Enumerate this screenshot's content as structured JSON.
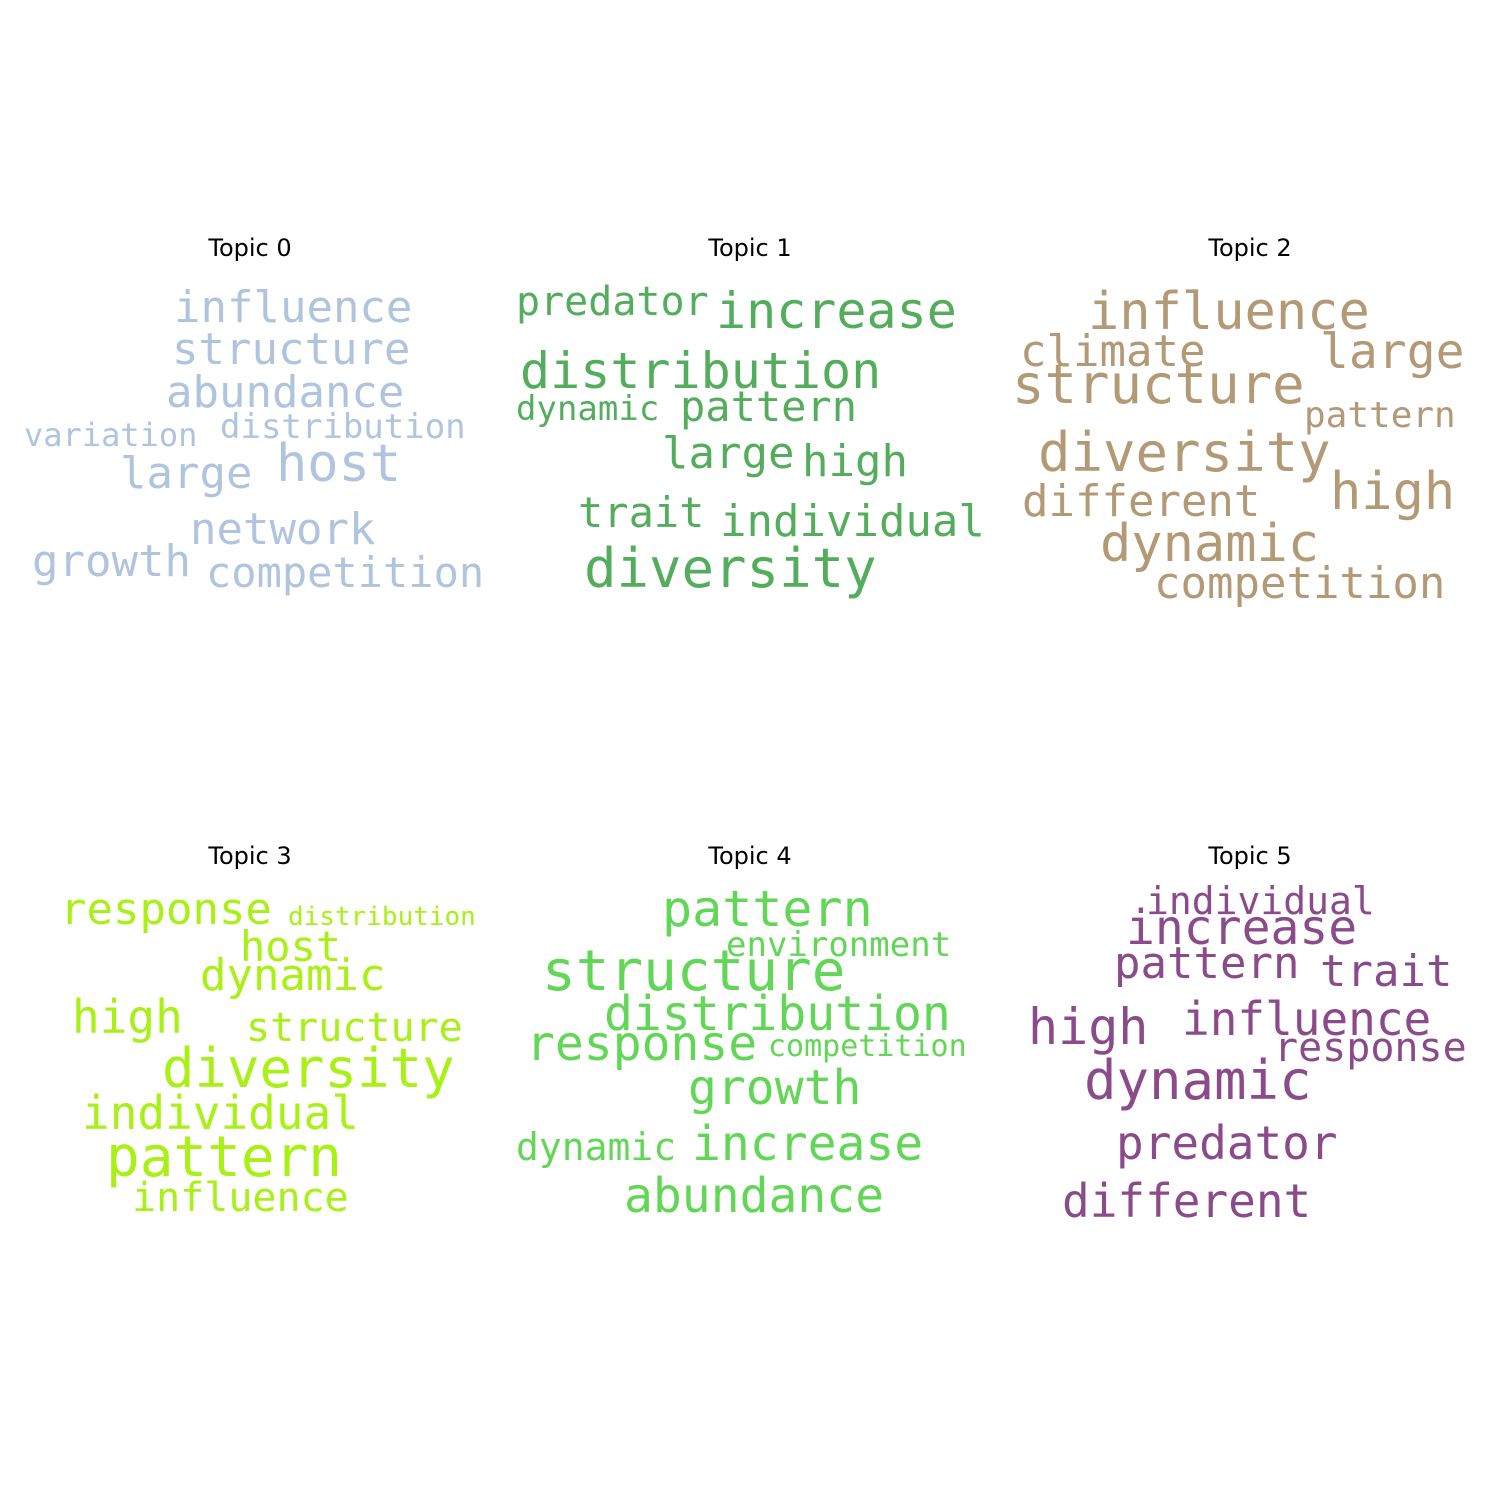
{
  "panels": [
    {
      "title": "Topic 0",
      "color": "#b0c4de",
      "words": [
        "influence",
        "structure",
        "abundance",
        "variation",
        "distribution",
        "large",
        "host",
        "network",
        "growth",
        "competition"
      ]
    },
    {
      "title": "Topic 1",
      "color": "#54ad5c",
      "words": [
        "predator",
        "increase",
        "distribution",
        "dynamic",
        "pattern",
        "large",
        "high",
        "trait",
        "individual",
        "diversity"
      ]
    },
    {
      "title": "Topic 2",
      "color": "#b29a76",
      "words": [
        "influence",
        "climate",
        "large",
        "structure",
        "pattern",
        "diversity",
        "different",
        "high",
        "dynamic",
        "competition"
      ]
    },
    {
      "title": "Topic 3",
      "color": "#a8f015",
      "words": [
        "response",
        "distribution",
        "host",
        "dynamic",
        "high",
        "structure",
        "diversity",
        "individual",
        "pattern",
        "influence"
      ]
    },
    {
      "title": "Topic 4",
      "color": "#62d656",
      "words": [
        "pattern",
        "environment",
        "structure",
        "distribution",
        "response",
        "competition",
        "growth",
        "dynamic",
        "increase",
        "abundance"
      ]
    },
    {
      "title": "Topic 5",
      "color": "#8b4b8a",
      "words": [
        "individual",
        "increase",
        "pattern",
        "trait",
        "high",
        "influence",
        "response",
        "dynamic",
        "predator",
        "different"
      ]
    }
  ]
}
